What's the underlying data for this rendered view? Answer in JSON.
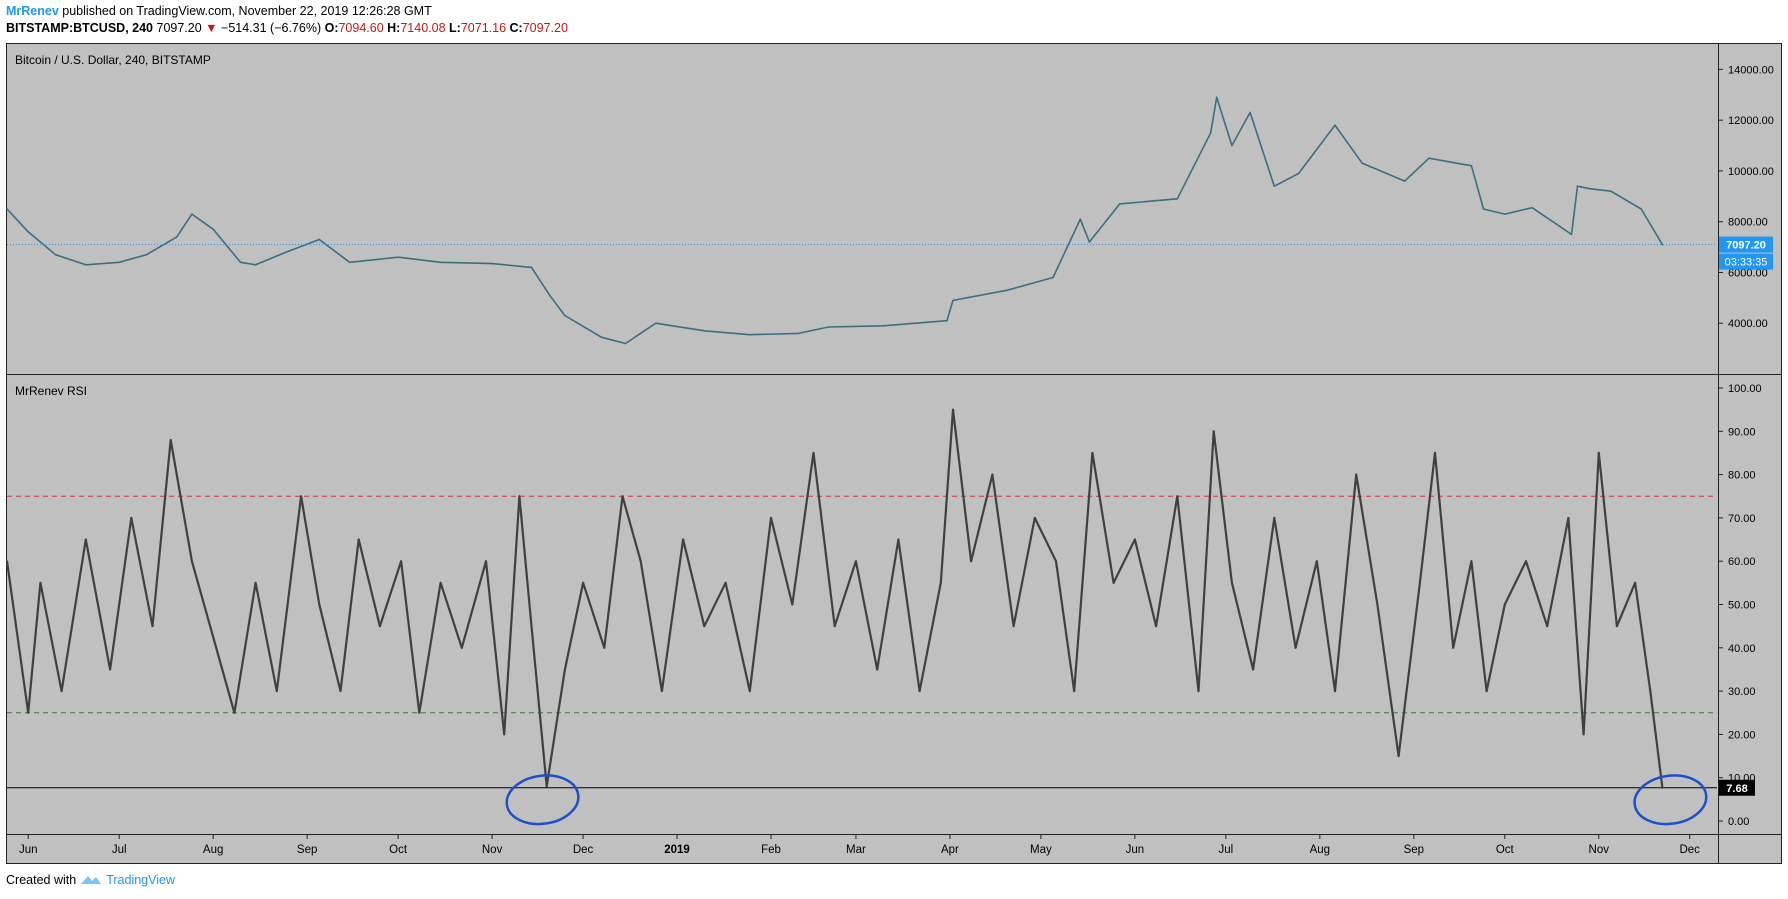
{
  "header": {
    "author": "MrRenev",
    "published": "published on TradingView.com, November 22, 2019 12:26:28 GMT",
    "symbol": "BITSTAMP:BTCUSD, 240",
    "last_price": "7097.20",
    "change_arrow": "▼",
    "change": "−514.31 (−6.76%)",
    "o_label": "O:",
    "o_value": "7094.60",
    "h_label": "H:",
    "h_value": "7140.08",
    "l_label": "L:",
    "l_value": "7071.16",
    "c_label": "C:",
    "c_value": "7097.20"
  },
  "footer": {
    "created_with": "Created with",
    "brand": "TradingView"
  },
  "colors": {
    "background": "#c0c0c0",
    "price_line": "#3a6f80",
    "rsi_line": "#404040",
    "overbought": "#e03030",
    "oversold": "#3a7a3a",
    "price_tag": "#2196f3",
    "circle": "#1e50c8"
  },
  "chart_data": [
    {
      "type": "line",
      "title": "Bitcoin / U.S. Dollar, 240, BITSTAMP",
      "ylim": [
        2000,
        15000
      ],
      "ytick_labels": [
        "4000.00",
        "6000.00",
        "8000.00",
        "10000.00",
        "12000.00",
        "14000.00"
      ],
      "ytick_values": [
        4000,
        6000,
        8000,
        10000,
        12000,
        14000
      ],
      "last_value_label": "7097.20",
      "countdown_label": "03:33:35",
      "last_value": 7097.2,
      "x": [
        "2018-05-25",
        "2018-06-01",
        "2018-06-10",
        "2018-06-20",
        "2018-07-01",
        "2018-07-10",
        "2018-07-20",
        "2018-07-25",
        "2018-08-01",
        "2018-08-10",
        "2018-08-15",
        "2018-08-25",
        "2018-09-05",
        "2018-09-15",
        "2018-10-01",
        "2018-10-15",
        "2018-11-01",
        "2018-11-14",
        "2018-11-20",
        "2018-11-25",
        "2018-12-07",
        "2018-12-15",
        "2018-12-25",
        "2019-01-10",
        "2019-01-25",
        "2019-02-10",
        "2019-02-20",
        "2019-03-10",
        "2019-03-31",
        "2019-04-02",
        "2019-04-20",
        "2019-05-05",
        "2019-05-14",
        "2019-05-17",
        "2019-05-27",
        "2019-06-15",
        "2019-06-26",
        "2019-06-28",
        "2019-07-03",
        "2019-07-09",
        "2019-07-17",
        "2019-07-25",
        "2019-08-06",
        "2019-08-15",
        "2019-08-29",
        "2019-09-06",
        "2019-09-20",
        "2019-09-24",
        "2019-10-01",
        "2019-10-10",
        "2019-10-23",
        "2019-10-25",
        "2019-10-29",
        "2019-11-05",
        "2019-11-15",
        "2019-11-22"
      ],
      "y": [
        8500,
        7600,
        6700,
        6300,
        6400,
        6700,
        7400,
        8300,
        7700,
        6400,
        6300,
        6800,
        7300,
        6400,
        6600,
        6400,
        6350,
        6200,
        5100,
        4300,
        3450,
        3200,
        4000,
        3700,
        3550,
        3600,
        3850,
        3900,
        4100,
        4900,
        5300,
        5800,
        8100,
        7200,
        8700,
        8900,
        11500,
        12900,
        11000,
        12300,
        9400,
        9900,
        11800,
        10300,
        9600,
        10500,
        10200,
        8500,
        8300,
        8550,
        7500,
        9400,
        9300,
        9200,
        8500,
        7097
      ]
    },
    {
      "type": "line",
      "title": "MrRenev RSI",
      "ylim": [
        -3,
        103
      ],
      "ytick_labels": [
        "0.00",
        "10.00",
        "20.00",
        "30.00",
        "40.00",
        "50.00",
        "60.00",
        "70.00",
        "80.00",
        "90.00",
        "100.00"
      ],
      "ytick_values": [
        0,
        10,
        20,
        30,
        40,
        50,
        60,
        70,
        80,
        90,
        100
      ],
      "overbought": 75,
      "oversold": 25,
      "baseline": 7.68,
      "last_value_label": "7.68",
      "x": [
        "2018-05-25",
        "2018-06-01",
        "2018-06-05",
        "2018-06-12",
        "2018-06-20",
        "2018-06-28",
        "2018-07-05",
        "2018-07-12",
        "2018-07-18",
        "2018-07-25",
        "2018-08-02",
        "2018-08-08",
        "2018-08-15",
        "2018-08-22",
        "2018-08-30",
        "2018-09-05",
        "2018-09-12",
        "2018-09-18",
        "2018-09-25",
        "2018-10-02",
        "2018-10-08",
        "2018-10-15",
        "2018-10-22",
        "2018-10-30",
        "2018-11-05",
        "2018-11-10",
        "2018-11-14",
        "2018-11-19",
        "2018-11-25",
        "2018-12-01",
        "2018-12-08",
        "2018-12-14",
        "2018-12-20",
        "2018-12-27",
        "2019-01-03",
        "2019-01-10",
        "2019-01-17",
        "2019-01-25",
        "2019-02-01",
        "2019-02-08",
        "2019-02-15",
        "2019-02-22",
        "2019-03-01",
        "2019-03-08",
        "2019-03-15",
        "2019-03-22",
        "2019-03-29",
        "2019-04-02",
        "2019-04-08",
        "2019-04-15",
        "2019-04-22",
        "2019-04-29",
        "2019-05-06",
        "2019-05-12",
        "2019-05-18",
        "2019-05-25",
        "2019-06-01",
        "2019-06-08",
        "2019-06-15",
        "2019-06-22",
        "2019-06-27",
        "2019-07-03",
        "2019-07-10",
        "2019-07-17",
        "2019-07-24",
        "2019-07-31",
        "2019-08-06",
        "2019-08-13",
        "2019-08-20",
        "2019-08-27",
        "2019-09-03",
        "2019-09-08",
        "2019-09-14",
        "2019-09-20",
        "2019-09-25",
        "2019-10-01",
        "2019-10-08",
        "2019-10-15",
        "2019-10-22",
        "2019-10-27",
        "2019-11-01",
        "2019-11-07",
        "2019-11-13",
        "2019-11-18",
        "2019-11-22"
      ],
      "y": [
        60,
        25,
        55,
        30,
        65,
        35,
        70,
        45,
        88,
        60,
        40,
        25,
        55,
        30,
        75,
        50,
        30,
        65,
        45,
        60,
        25,
        55,
        40,
        60,
        20,
        75,
        45,
        8,
        35,
        55,
        40,
        75,
        60,
        30,
        65,
        45,
        55,
        30,
        70,
        50,
        85,
        45,
        60,
        35,
        65,
        30,
        55,
        95,
        60,
        80,
        45,
        70,
        60,
        30,
        85,
        55,
        65,
        45,
        75,
        30,
        90,
        55,
        35,
        70,
        40,
        60,
        30,
        80,
        50,
        15,
        55,
        85,
        40,
        60,
        30,
        50,
        60,
        45,
        70,
        20,
        85,
        45,
        55,
        30,
        7.68
      ]
    }
  ],
  "x_axis": {
    "labels": [
      "Jun",
      "Jul",
      "Aug",
      "Sep",
      "Oct",
      "Nov",
      "Dec",
      "2019",
      "Feb",
      "Mar",
      "Apr",
      "May",
      "Jun",
      "Jul",
      "Aug",
      "Sep",
      "Oct",
      "Nov",
      "Dec"
    ],
    "dates": [
      "2018-06-01",
      "2018-07-01",
      "2018-08-01",
      "2018-09-01",
      "2018-10-01",
      "2018-11-01",
      "2018-12-01",
      "2019-01-01",
      "2019-02-01",
      "2019-03-01",
      "2019-04-01",
      "2019-05-01",
      "2019-06-01",
      "2019-07-01",
      "2019-08-01",
      "2019-09-01",
      "2019-10-01",
      "2019-11-01",
      "2019-12-01"
    ],
    "bold_labels": [
      "2019"
    ]
  },
  "annotations": [
    {
      "kind": "hand-drawn circle",
      "date": "2018-11-15",
      "rsi": 7.68
    },
    {
      "kind": "hand-drawn circle",
      "date": "2019-11-22",
      "rsi": 7.68
    }
  ]
}
